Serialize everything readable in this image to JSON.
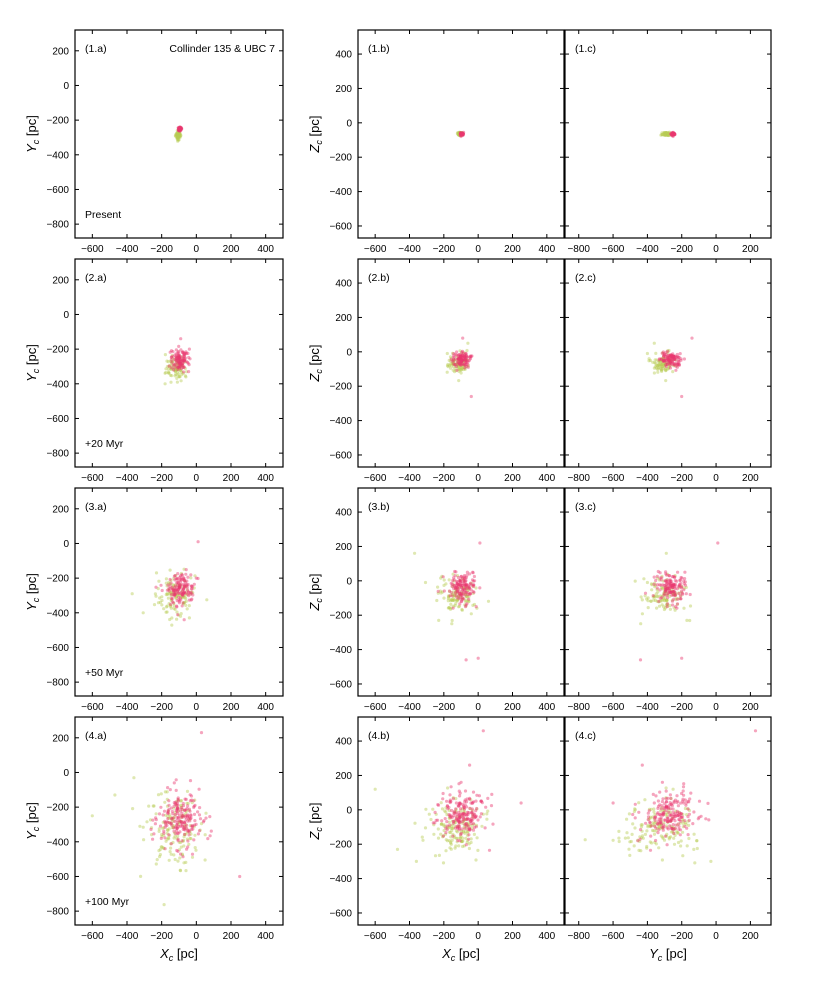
{
  "figure_title": "Collinder 135 & UBC 7",
  "colors": {
    "series_a": "#b8cc55",
    "series_b": "#e8386e"
  },
  "chart_data": {
    "type": "scatter",
    "grid": false,
    "legend": "none",
    "columns": [
      {
        "xlabel_base": "X",
        "xlabel_sub": "c",
        "xlabel_unit": " [pc]",
        "ylabel_base": "Y",
        "ylabel_sub": "c",
        "ylabel_unit": " [pc]",
        "xlim": [
          -700,
          500
        ],
        "ylim": [
          -880,
          320
        ],
        "xticks": [
          -600,
          -400,
          -200,
          0,
          200,
          400
        ],
        "yticks": [
          -800,
          -600,
          -400,
          -200,
          0,
          200
        ]
      },
      {
        "xlabel_base": "X",
        "xlabel_sub": "c",
        "xlabel_unit": " [pc]",
        "ylabel_base": "Z",
        "ylabel_sub": "c",
        "ylabel_unit": " [pc]",
        "xlim": [
          -700,
          500
        ],
        "ylim": [
          -670,
          540
        ],
        "xticks": [
          -600,
          -400,
          -200,
          0,
          200,
          400
        ],
        "yticks": [
          -600,
          -400,
          -200,
          0,
          200,
          400
        ]
      },
      {
        "xlabel_base": "Y",
        "xlabel_sub": "c",
        "xlabel_unit": " [pc]",
        "ylabel_base": "",
        "ylabel_sub": "",
        "ylabel_unit": "",
        "xlim": [
          -880,
          320
        ],
        "ylim": [
          -670,
          540
        ],
        "xticks": [
          -800,
          -600,
          -400,
          -200,
          0,
          200
        ],
        "yticks": [
          -600,
          -400,
          -200,
          0,
          200,
          400
        ]
      }
    ],
    "rows": [
      {
        "time_label": "Present",
        "panel_labels": [
          "(1.a)",
          "(1.b)",
          "(1.c)"
        ]
      },
      {
        "time_label": "+20 Myr",
        "panel_labels": [
          "(2.a)",
          "(2.b)",
          "(2.c)"
        ]
      },
      {
        "time_label": "+50 Myr",
        "panel_labels": [
          "(3.a)",
          "(3.b)",
          "(3.c)"
        ]
      },
      {
        "time_label": "+100 Myr",
        "panel_labels": [
          "(4.a)",
          "(4.b)",
          "(4.c)"
        ]
      }
    ],
    "clusters": [
      {
        "color": "#b8cc55",
        "rows": [
          {
            "center": [
              -105,
              -290,
              -65
            ],
            "spread": [
              8,
              12,
              5
            ],
            "count": 60,
            "outliers": []
          },
          {
            "center": [
              -115,
              -310,
              -70
            ],
            "spread": [
              30,
              35,
              28
            ],
            "count": 90,
            "outliers": [
              [
                -180,
                -400,
                -10
              ],
              [
                -60,
                -360,
                50
              ]
            ]
          },
          {
            "center": [
              -120,
              -300,
              -90
            ],
            "spread": [
              55,
              65,
              55
            ],
            "count": 110,
            "outliers": [
              [
                -370,
                -290,
                160
              ],
              [
                -230,
                -170,
                -230
              ]
            ]
          },
          {
            "center": [
              -140,
              -320,
              -110
            ],
            "spread": [
              80,
              110,
              75
            ],
            "count": 150,
            "outliers": [
              [
                -600,
                -250,
                120
              ],
              [
                -470,
                -130,
                -230
              ],
              [
                -360,
                -30,
                -300
              ]
            ]
          }
        ]
      },
      {
        "color": "#e8386e",
        "rows": [
          {
            "center": [
              -95,
              -250,
              -65
            ],
            "spread": [
              6,
              5,
              5
            ],
            "count": 60,
            "outliers": []
          },
          {
            "center": [
              -95,
              -260,
              -50
            ],
            "spread": [
              25,
              32,
              22
            ],
            "count": 110,
            "outliers": [
              [
                -90,
                -140,
                80
              ],
              [
                -40,
                -200,
                -260
              ]
            ]
          },
          {
            "center": [
              -90,
              -260,
              -40
            ],
            "spread": [
              38,
              48,
              42
            ],
            "count": 140,
            "outliers": [
              [
                10,
                10,
                220
              ],
              [
                -70,
                -440,
                -460
              ],
              [
                0,
                -200,
                -450
              ]
            ]
          },
          {
            "center": [
              -90,
              -280,
              -30
            ],
            "spread": [
              65,
              80,
              70
            ],
            "count": 190,
            "outliers": [
              [
                30,
                230,
                460
              ],
              [
                250,
                -600,
                40
              ],
              [
                -50,
                -430,
                260
              ]
            ]
          }
        ]
      }
    ]
  }
}
